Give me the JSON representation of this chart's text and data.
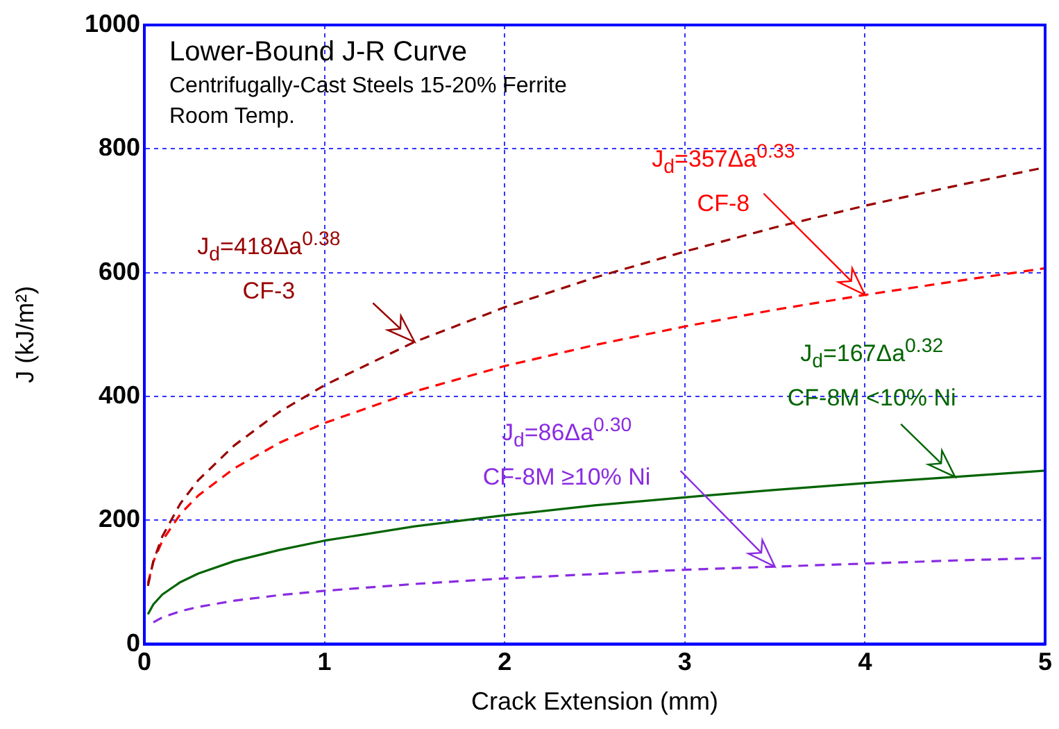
{
  "chart_data": {
    "type": "line",
    "title": "Lower-Bound J-R Curve",
    "subtitle": "Centrifugally-Cast Steels 15-20% Ferrite",
    "xlabel": "Crack Extension (mm)",
    "ylabel": "J (kJ/m²)",
    "x": [
      0.02,
      0.05,
      0.1,
      0.2,
      0.3,
      0.5,
      0.75,
      1,
      1.5,
      2,
      2.5,
      3,
      3.5,
      4,
      4.5,
      5
    ],
    "series": [
      {
        "name": "CF-3",
        "color": "#990000",
        "line_style": "dashed",
        "values": [
          94,
          134,
          174,
          227,
          265,
          321,
          375,
          418,
          488,
          544,
          592,
          634,
          673,
          708,
          740,
          770
        ]
      },
      {
        "name": "CF-8",
        "color": "#ff0000",
        "line_style": "dashed",
        "values": [
          98,
          133,
          167,
          210,
          240,
          284,
          325,
          357,
          408,
          449,
          483,
          513,
          540,
          564,
          586,
          607
        ]
      },
      {
        "name": "CF-8M <10% Ni",
        "color": "#006400",
        "line_style": "solid",
        "values": [
          48,
          64,
          80,
          100,
          114,
          134,
          152,
          167,
          190,
          208,
          224,
          237,
          249,
          260,
          270,
          280
        ]
      },
      {
        "name": "CF-8M ≥10% Ni",
        "color": "#8a2be2",
        "line_style": "dashed",
        "values": [
          null,
          35,
          43,
          53,
          60,
          70,
          79,
          86,
          97,
          106,
          113,
          120,
          125,
          130,
          135,
          139
        ]
      }
    ],
    "annotations": [
      "Room Temp.",
      "J$_{d}$=418Δa$^{0.38}$",
      "J$_{d}$=357Δa$^{0.33}$",
      "J$_{d}$=167Δa$^{0.32}$",
      "J$_{d}$=86Δa$^{0.30}$"
    ],
    "xlim": [
      0,
      5
    ],
    "xticks": [
      0,
      1,
      2,
      3,
      4,
      5
    ],
    "ylim": [
      0,
      1000
    ],
    "yticks": [
      0,
      200,
      400,
      600,
      800,
      1000
    ],
    "grid": true,
    "legend": false,
    "marker": "none"
  }
}
